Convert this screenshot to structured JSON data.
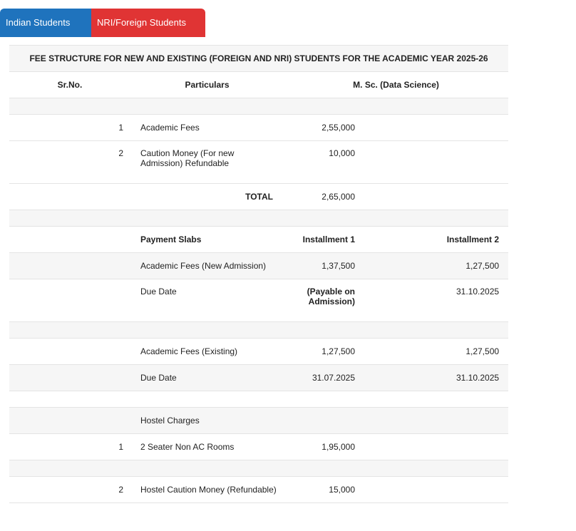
{
  "tabs": [
    "Indian Students",
    "NRI/Foreign Students"
  ],
  "table": {
    "title": "FEE STRUCTURE FOR NEW AND EXISTING (FOREIGN AND NRI) STUDENTS FOR THE ACADEMIC YEAR 2025-26",
    "header": [
      "Sr.No.",
      "Particulars",
      "M. Sc. (Data Science)"
    ],
    "rows": [
      [
        null,
        null,
        null,
        null
      ],
      [
        "1",
        "Academic Fees",
        "2,55,000",
        null
      ],
      [
        "2",
        "Caution Money (For new Admission) Refundable",
        "10,000",
        null
      ],
      [
        null,
        "TOTAL",
        "2,65,000",
        null
      ],
      [
        null,
        null,
        null,
        null
      ],
      [
        null,
        "Payment Slabs",
        "Installment 1",
        "Installment 2"
      ],
      [
        null,
        "Academic Fees (New Admission)",
        "1,37,500",
        "1,27,500"
      ],
      [
        null,
        "Due Date",
        "(Payable on Admission)",
        "31.10.2025"
      ],
      [
        null,
        null,
        null,
        null
      ],
      [
        null,
        "Academic Fees (Existing)",
        "1,27,500",
        "1,27,500"
      ],
      [
        null,
        "Due Date",
        "31.07.2025",
        "31.10.2025"
      ],
      [
        null,
        null,
        null,
        null
      ],
      [
        null,
        "Hostel Charges",
        null,
        null
      ],
      [
        "1",
        "2 Seater Non AC Rooms",
        "1,95,000",
        null
      ],
      [
        null,
        null,
        null,
        null
      ],
      [
        "2",
        "Hostel Caution Money (Refundable)",
        "15,000",
        null
      ]
    ]
  }
}
